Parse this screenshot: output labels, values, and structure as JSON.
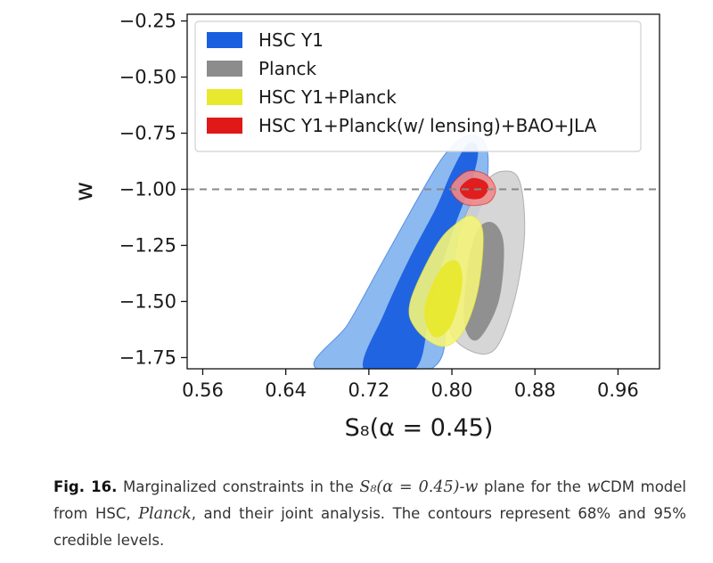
{
  "chart_data": {
    "type": "contour",
    "xlabel": "S₈(α = 0.45)",
    "ylabel": "w",
    "xlim": [
      0.545,
      1.0
    ],
    "ylim": [
      -1.8,
      -0.22
    ],
    "x_ticks": [
      "0.56",
      "0.64",
      "0.72",
      "0.80",
      "0.88",
      "0.96"
    ],
    "x_tick_values": [
      0.56,
      0.64,
      0.72,
      0.8,
      0.88,
      0.96
    ],
    "y_ticks": [
      "−0.25",
      "−0.50",
      "−0.75",
      "−1.00",
      "−1.25",
      "−1.50",
      "−1.75"
    ],
    "y_tick_values": [
      -0.25,
      -0.5,
      -0.75,
      -1.0,
      -1.25,
      -1.5,
      -1.75
    ],
    "reference_line": {
      "w": -1.0,
      "style": "dashed",
      "color": "#888888"
    },
    "grid": false,
    "legend_position": "top-left",
    "contour_levels": [
      "68%",
      "95%"
    ],
    "series": [
      {
        "name": "HSC Y1",
        "color_68": "#1a5fe0",
        "color_95": "#7fb2ee",
        "contour_95": [
          [
            0.67,
            -1.8
          ],
          [
            0.7,
            -1.6
          ],
          [
            0.73,
            -1.35
          ],
          [
            0.76,
            -1.1
          ],
          [
            0.785,
            -0.9
          ],
          [
            0.8,
            -0.81
          ],
          [
            0.815,
            -0.76
          ],
          [
            0.83,
            -0.78
          ],
          [
            0.835,
            -0.88
          ],
          [
            0.83,
            -1.05
          ],
          [
            0.81,
            -1.25
          ],
          [
            0.795,
            -1.5
          ],
          [
            0.78,
            -1.8
          ]
        ],
        "contour_68": [
          [
            0.715,
            -1.8
          ],
          [
            0.735,
            -1.55
          ],
          [
            0.76,
            -1.3
          ],
          [
            0.785,
            -1.08
          ],
          [
            0.8,
            -0.92
          ],
          [
            0.815,
            -0.8
          ],
          [
            0.825,
            -0.82
          ],
          [
            0.82,
            -0.95
          ],
          [
            0.8,
            -1.2
          ],
          [
            0.78,
            -1.5
          ],
          [
            0.765,
            -1.8
          ]
        ]
      },
      {
        "name": "Planck",
        "color_68": "#8c8c8c",
        "color_95": "#d2d2d2",
        "contour_95": [
          [
            0.8,
            -1.38
          ],
          [
            0.81,
            -1.15
          ],
          [
            0.83,
            -0.98
          ],
          [
            0.848,
            -0.92
          ],
          [
            0.865,
            -0.96
          ],
          [
            0.87,
            -1.2
          ],
          [
            0.86,
            -1.5
          ],
          [
            0.84,
            -1.72
          ],
          [
            0.81,
            -1.7
          ],
          [
            0.795,
            -1.58
          ]
        ],
        "contour_68": [
          [
            0.815,
            -1.35
          ],
          [
            0.825,
            -1.18
          ],
          [
            0.84,
            -1.15
          ],
          [
            0.85,
            -1.25
          ],
          [
            0.845,
            -1.5
          ],
          [
            0.825,
            -1.67
          ],
          [
            0.812,
            -1.6
          ]
        ]
      },
      {
        "name": "HSC Y1+Planck",
        "color_68": "#e8e82e",
        "color_95": "#f4f47a",
        "contour_95": [
          [
            0.76,
            -1.5
          ],
          [
            0.785,
            -1.25
          ],
          [
            0.805,
            -1.15
          ],
          [
            0.82,
            -1.12
          ],
          [
            0.83,
            -1.2
          ],
          [
            0.825,
            -1.45
          ],
          [
            0.81,
            -1.64
          ],
          [
            0.79,
            -1.7
          ],
          [
            0.765,
            -1.62
          ]
        ],
        "contour_68": [
          [
            0.775,
            -1.5
          ],
          [
            0.79,
            -1.35
          ],
          [
            0.805,
            -1.32
          ],
          [
            0.81,
            -1.42
          ],
          [
            0.8,
            -1.6
          ],
          [
            0.785,
            -1.66
          ],
          [
            0.775,
            -1.6
          ]
        ]
      },
      {
        "name": "HSC Y1+Planck(w/ lensing)+BAO+JLA",
        "color_68": "#e01818",
        "color_95": "#f08a8a",
        "contour_95": [
          [
            0.8,
            -0.98
          ],
          [
            0.815,
            -0.92
          ],
          [
            0.833,
            -0.935
          ],
          [
            0.842,
            -1.0
          ],
          [
            0.835,
            -1.06
          ],
          [
            0.815,
            -1.07
          ],
          [
            0.802,
            -1.03
          ]
        ],
        "contour_68": [
          [
            0.81,
            -0.98
          ],
          [
            0.82,
            -0.95
          ],
          [
            0.832,
            -0.965
          ],
          [
            0.835,
            -1.0
          ],
          [
            0.828,
            -1.04
          ],
          [
            0.815,
            -1.04
          ],
          [
            0.808,
            -1.01
          ]
        ]
      }
    ]
  },
  "caption": {
    "fig_label": "Fig. 16.",
    "text_1": " Marginalized constraints in the ",
    "math_1": "S₈(α = 0.45)-w",
    "text_2": " plane for the ",
    "math_2": "w",
    "text_3": "CDM model from HSC, ",
    "math_3": "Planck",
    "text_4": ", and their joint analysis. The contours represent 68% and 95% credible levels."
  }
}
